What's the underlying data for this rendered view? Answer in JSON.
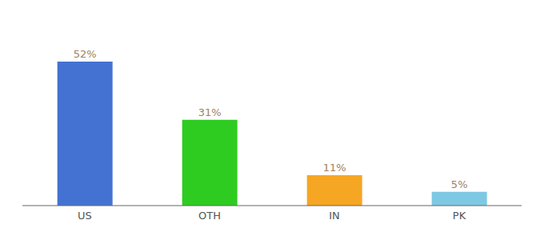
{
  "chart_data": {
    "type": "bar",
    "categories": [
      "US",
      "OTH",
      "IN",
      "PK"
    ],
    "values": [
      52,
      31,
      11,
      5
    ],
    "value_labels": [
      "52%",
      "31%",
      "11%",
      "5%"
    ],
    "data_labels": true,
    "colors": [
      "#4472D3",
      "#2ECC21",
      "#F5A623",
      "#7EC8E3"
    ],
    "ylim": [
      0,
      65
    ],
    "grid": false,
    "tick_labels": "x"
  }
}
